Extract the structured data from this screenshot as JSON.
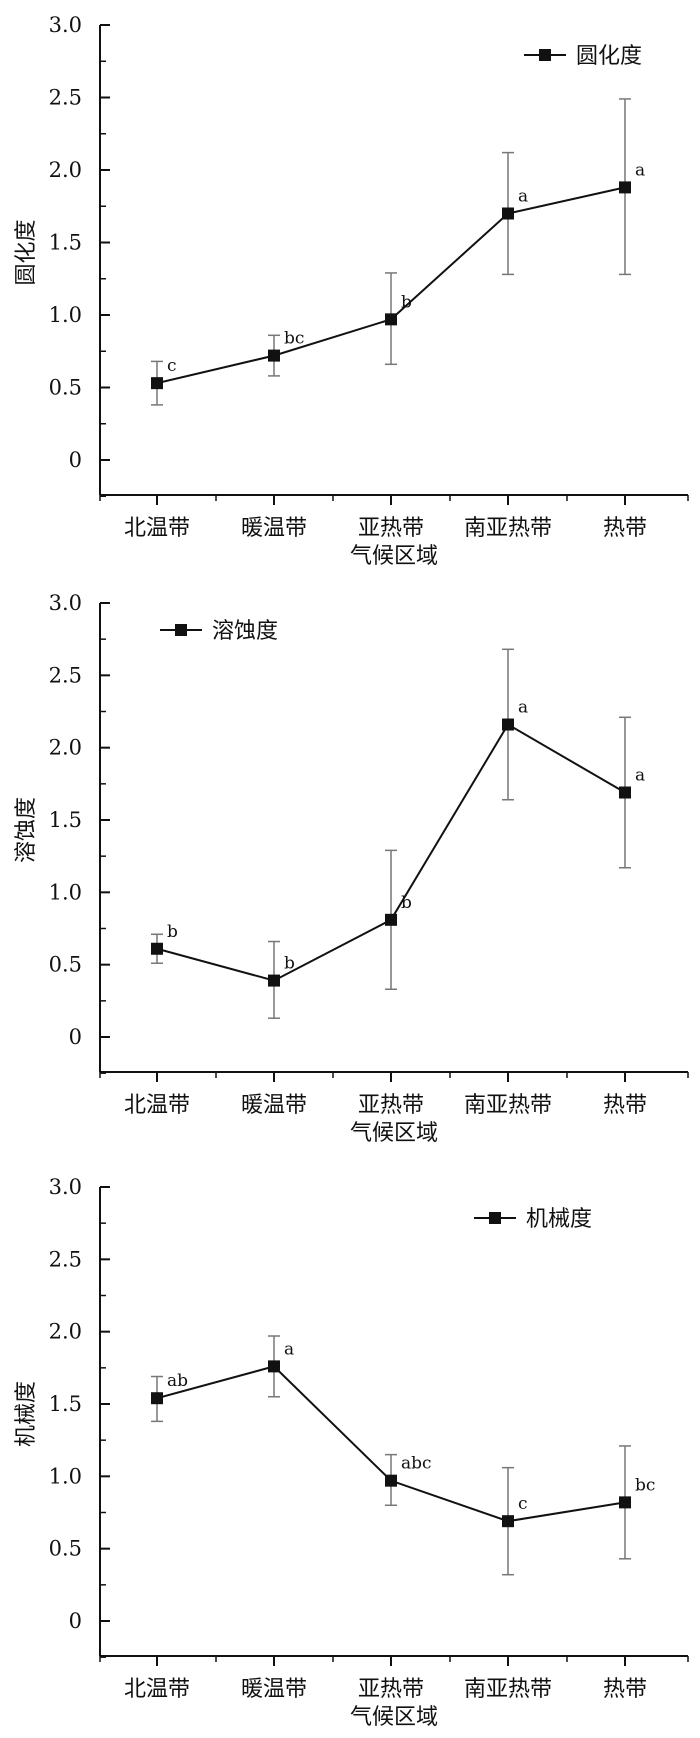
{
  "chart_data": [
    {
      "type": "line",
      "title": "",
      "xlabel": "气候区域",
      "ylabel": "圆化度",
      "ylim": [
        0,
        3.0
      ],
      "yticks": [
        "0",
        "0.5",
        "1.0",
        "1.5",
        "2.0",
        "2.5",
        "3.0"
      ],
      "categories": [
        "北温带",
        "暖温带",
        "亚热带",
        "南亚热带",
        "热带"
      ],
      "series": [
        {
          "name": "圆化度",
          "values": [
            0.53,
            0.72,
            0.97,
            1.7,
            1.88
          ],
          "error_low": [
            0.38,
            0.58,
            0.66,
            1.28,
            1.28
          ],
          "error_high": [
            0.68,
            0.86,
            1.29,
            2.12,
            2.49
          ],
          "labels": [
            "c",
            "bc",
            "b",
            "a",
            "a"
          ]
        }
      ],
      "legend_position": "top-right",
      "grid": false
    },
    {
      "type": "line",
      "title": "",
      "xlabel": "气候区域",
      "ylabel": "溶蚀度",
      "ylim": [
        0,
        3.0
      ],
      "yticks": [
        "0",
        "0.5",
        "1.0",
        "1.5",
        "2.0",
        "2.5",
        "3.0"
      ],
      "categories": [
        "北温带",
        "暖温带",
        "亚热带",
        "南亚热带",
        "热带"
      ],
      "series": [
        {
          "name": "溶蚀度",
          "values": [
            0.61,
            0.39,
            0.81,
            2.16,
            1.69
          ],
          "error_low": [
            0.51,
            0.13,
            0.33,
            1.64,
            1.17
          ],
          "error_high": [
            0.71,
            0.66,
            1.29,
            2.68,
            2.21
          ],
          "labels": [
            "b",
            "b",
            "b",
            "a",
            "a"
          ]
        }
      ],
      "legend_position": "top-left",
      "grid": false
    },
    {
      "type": "line",
      "title": "",
      "xlabel": "气候区域",
      "ylabel": "机械度",
      "ylim": [
        0,
        3.0
      ],
      "yticks": [
        "0",
        "0.5",
        "1.0",
        "1.5",
        "2.0",
        "2.5",
        "3.0"
      ],
      "categories": [
        "北温带",
        "暖温带",
        "亚热带",
        "南亚热带",
        "热带"
      ],
      "series": [
        {
          "name": "机械度",
          "values": [
            1.54,
            1.76,
            0.97,
            0.69,
            0.82
          ],
          "error_low": [
            1.38,
            1.55,
            0.8,
            0.32,
            0.43
          ],
          "error_high": [
            1.69,
            1.97,
            1.15,
            1.06,
            1.21
          ],
          "labels": [
            "ab",
            "a",
            "abc",
            "c",
            "bc"
          ]
        }
      ],
      "legend_position": "top-right",
      "grid": false
    }
  ]
}
